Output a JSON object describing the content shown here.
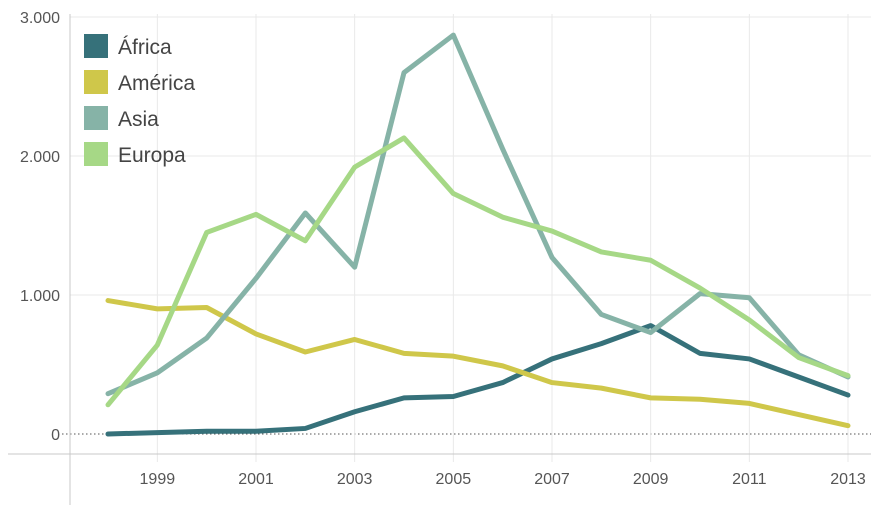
{
  "chart_data": {
    "type": "line",
    "x": [
      1998,
      1999,
      2000,
      2001,
      2002,
      2003,
      2004,
      2005,
      2006,
      2007,
      2008,
      2009,
      2010,
      2011,
      2012,
      2013
    ],
    "x_tick_labels": [
      "1999",
      "2001",
      "2003",
      "2005",
      "2007",
      "2009",
      "2011",
      "2013"
    ],
    "y_tick_labels": [
      "0",
      "1.000",
      "2.000",
      "3.000"
    ],
    "ylim": [
      0,
      3000
    ],
    "grid": true,
    "legend": "top-left",
    "series": [
      {
        "name": "África",
        "color": "#36717a",
        "values": [
          0,
          10,
          20,
          20,
          40,
          160,
          260,
          270,
          370,
          540,
          650,
          780,
          580,
          540,
          410,
          280
        ]
      },
      {
        "name": "América",
        "color": "#cfc74a",
        "values": [
          960,
          900,
          910,
          720,
          590,
          680,
          580,
          560,
          490,
          370,
          330,
          260,
          250,
          220,
          140,
          60
        ]
      },
      {
        "name": "Asia",
        "color": "#86b3a7",
        "values": [
          290,
          440,
          690,
          1120,
          1590,
          1200,
          2600,
          2870,
          2050,
          1270,
          860,
          730,
          1010,
          980,
          570,
          410
        ]
      },
      {
        "name": "Europa",
        "color": "#a6d886",
        "values": [
          210,
          640,
          1450,
          1580,
          1390,
          1920,
          2130,
          1730,
          1560,
          1460,
          1310,
          1250,
          1050,
          820,
          550,
          420
        ]
      }
    ]
  }
}
